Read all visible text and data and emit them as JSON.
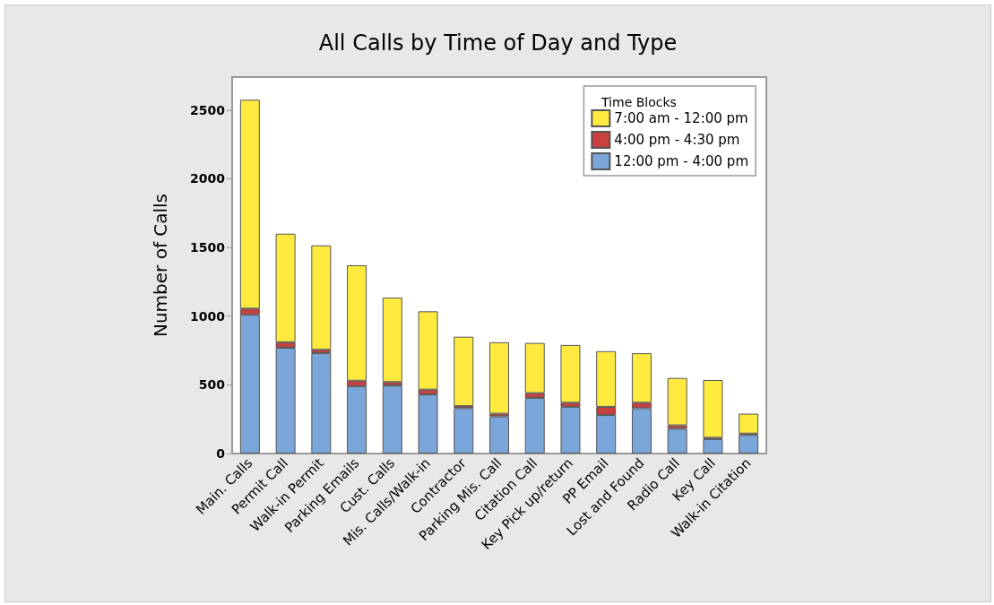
{
  "chart_data": {
    "type": "bar",
    "title": "All Calls by Time of Day and Type",
    "ylabel": "Number of Calls",
    "legend_title": "Time Blocks",
    "categories": [
      "Main. Calls",
      "Permit Call",
      "Walk-in Permit",
      "Parking Emails",
      "Cust. Calls",
      "Mis. Calls/Walk-in",
      "Contractor",
      "Parking Mis. Call",
      "Citation Call",
      "Key Pick up/return",
      "PP Email",
      "Lost and Found",
      "Radio Call",
      "Key Call",
      "Walk-in Citation"
    ],
    "series": [
      {
        "name": "12:00 pm - 4:00 pm",
        "color": "#7ba6d9",
        "values": [
          1010,
          770,
          730,
          490,
          495,
          430,
          330,
          270,
          405,
          340,
          280,
          330,
          180,
          105,
          135
        ]
      },
      {
        "name": "4:00 pm - 4:30 pm",
        "color": "#c94040",
        "values": [
          45,
          40,
          25,
          40,
          25,
          35,
          15,
          20,
          35,
          30,
          60,
          40,
          25,
          10,
          10
        ]
      },
      {
        "name": "7:00 am - 12:00 pm",
        "color": "#ffeb40",
        "values": [
          1520,
          790,
          760,
          840,
          615,
          570,
          505,
          520,
          365,
          420,
          405,
          360,
          345,
          420,
          145
        ]
      }
    ],
    "stacked": true,
    "ylim": [
      0,
      2740
    ],
    "yticks": [
      0,
      500,
      1000,
      1500,
      2000,
      2500
    ],
    "grid": false,
    "legend": "top right"
  }
}
